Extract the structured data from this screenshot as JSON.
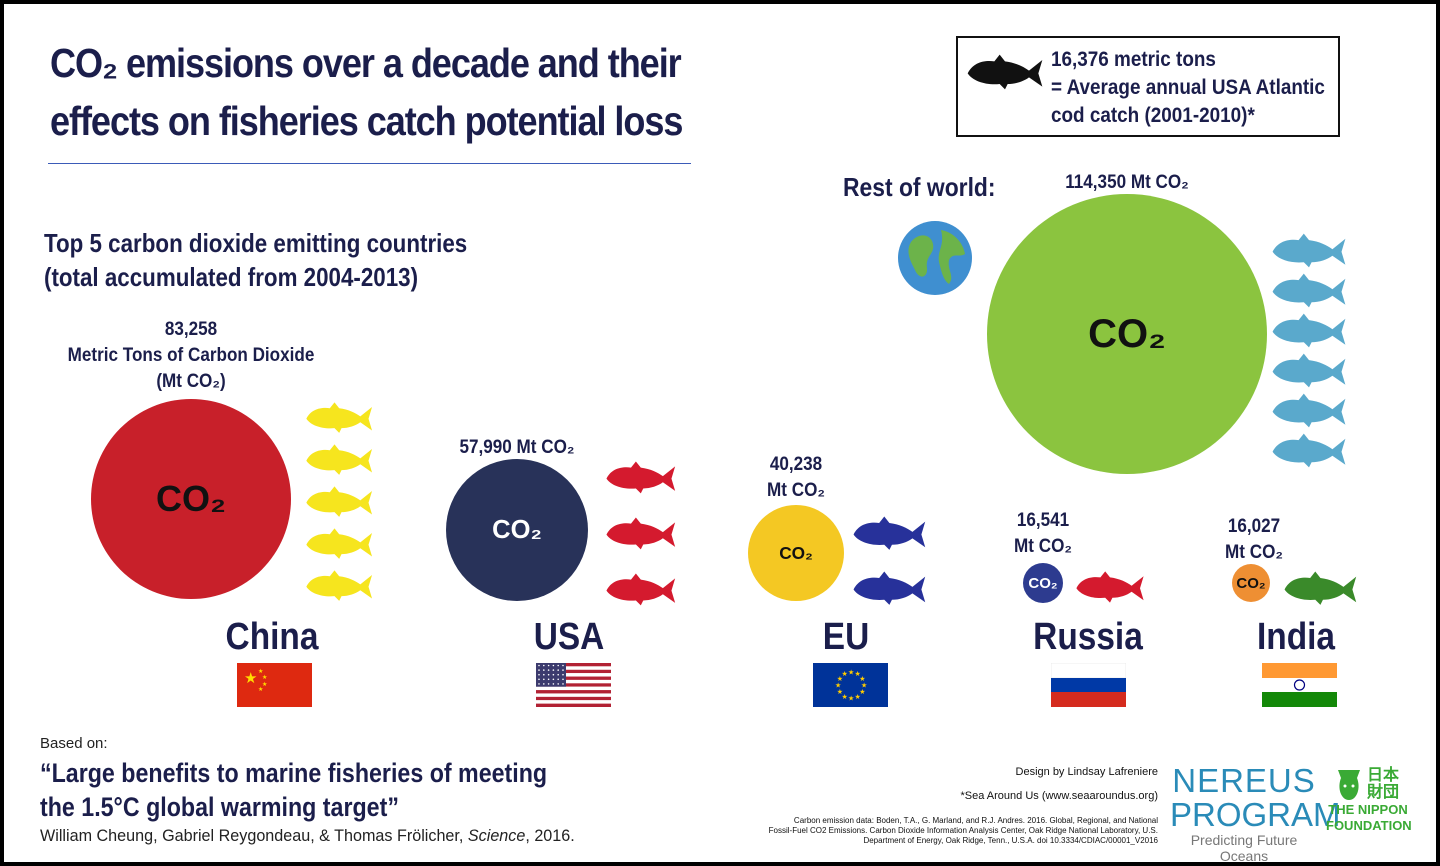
{
  "title": {
    "line1": "CO₂ emissions over a decade and their",
    "line2": "effects on fisheries catch potential loss"
  },
  "legend": {
    "icon": "fish-icon",
    "line1": "16,376 metric tons",
    "line2": "= Average annual USA Atlantic",
    "line3": "cod catch (2001-2010)*"
  },
  "subtitle": {
    "line1": "Top 5 carbon dioxide emitting countries",
    "line2": "(total accumulated from 2004-2013)"
  },
  "circle_label": "CO₂",
  "countries": [
    {
      "name": "China",
      "value": "83,258",
      "unit_long": "Metric Tons of Carbon Dioxide",
      "unit": "(Mt CO₂)",
      "mt_co2": 83258,
      "fish": 5,
      "circle_color": "#c8202a",
      "fish_color": "#f6e51e"
    },
    {
      "name": "USA",
      "value": "57,990 Mt CO₂",
      "mt_co2": 57990,
      "fish": 3,
      "circle_color": "#283259",
      "fish_color": "#d41a2e"
    },
    {
      "name": "EU",
      "value": "40,238",
      "unit": "Mt CO₂",
      "mt_co2": 40238,
      "fish": 2,
      "circle_color": "#f4c823",
      "fish_color": "#27319a"
    },
    {
      "name": "Russia",
      "value": "16,541",
      "unit": "Mt CO₂",
      "mt_co2": 16541,
      "fish": 1,
      "circle_color": "#2d3b8f",
      "fish_color": "#d41a2e"
    },
    {
      "name": "India",
      "value": "16,027",
      "unit": "Mt CO₂",
      "mt_co2": 16027,
      "fish": 1,
      "circle_color": "#ee8f33",
      "fish_color": "#3a8a2a"
    }
  ],
  "rest_of_world": {
    "label": "Rest of world:",
    "value": "114,350 Mt CO₂",
    "mt_co2": 114350,
    "fish": 6,
    "circle_color": "#8bc43f",
    "fish_color": "#5aa9cc",
    "icon": "globe-icon"
  },
  "footer": {
    "based_on": "Based on:",
    "paper_line1": "“Large benefits to marine fisheries of meeting",
    "paper_line2": "the 1.5°C global warming target”",
    "authors": "William Cheung, Gabriel Reygondeau, & Thomas Frölicher, ",
    "journal": "Science",
    "year": ", 2016.",
    "design": "Design by Lindsay Lafreniere",
    "sea_around_us": "*Sea Around Us (www.seaaroundus.org)",
    "source1": "Carbon emission data: Boden, T.A., G. Marland, and R.J. Andres. 2016. Global, Regional, and National",
    "source2": "Fossil-Fuel CO2 Emissions. Carbon Dioxide Information Analysis Center, Oak Ridge National Laboratory, U.S.",
    "source3": "Department of Energy, Oak Ridge, Tenn., U.S.A. doi 10.3334/CDIAC/00001_V2016",
    "nereus1": "NEREUS",
    "nereus2": "PROGRAM",
    "nereus_tag": "Predicting Future Oceans",
    "nippon_kanji": "日本財団",
    "nippon1": "THE NIPPON",
    "nippon2": "FOUNDATION"
  }
}
